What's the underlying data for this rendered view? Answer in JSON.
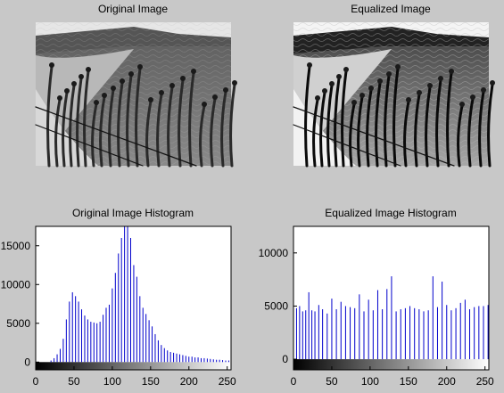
{
  "window": {
    "background": "#c8c8c8"
  },
  "images": [
    {
      "title": "Original Image",
      "kind": "original"
    },
    {
      "title": "Equalized Image",
      "kind": "equalized"
    }
  ],
  "chart_data": [
    {
      "type": "bar",
      "title": "Original Image Histogram",
      "xlabel": "",
      "ylabel": "",
      "xlim": [
        0,
        255
      ],
      "ylim": [
        -1000,
        17500
      ],
      "xticks": [
        0,
        50,
        100,
        150,
        200,
        250
      ],
      "yticks": [
        0,
        5000,
        10000,
        15000
      ],
      "grid": false,
      "bar_color": "#0000cc",
      "colorbar": "grayscale 0-255",
      "x": [
        20,
        24,
        28,
        32,
        36,
        40,
        44,
        48,
        52,
        56,
        60,
        64,
        68,
        72,
        76,
        80,
        84,
        88,
        92,
        96,
        100,
        104,
        108,
        112,
        116,
        120,
        124,
        128,
        132,
        136,
        140,
        144,
        148,
        152,
        156,
        160,
        164,
        168,
        172,
        176,
        180,
        184,
        188,
        192,
        196,
        200,
        204,
        208,
        212,
        216,
        220,
        224,
        228,
        232,
        236,
        240,
        244,
        248,
        252,
        255
      ],
      "values": [
        200,
        500,
        1000,
        1700,
        3000,
        5500,
        7800,
        9000,
        8500,
        7800,
        6800,
        6000,
        5500,
        5200,
        5100,
        5000,
        5200,
        6100,
        7000,
        7400,
        9500,
        11500,
        14000,
        16000,
        17500,
        17500,
        16000,
        12500,
        11000,
        8500,
        7000,
        6200,
        5400,
        4600,
        3600,
        2800,
        2200,
        1800,
        1500,
        1300,
        1200,
        1100,
        1000,
        900,
        800,
        700,
        700,
        600,
        600,
        500,
        500,
        450,
        400,
        350,
        300,
        300,
        250,
        200,
        200,
        800
      ]
    },
    {
      "type": "bar",
      "title": "Equalized Image Histogram",
      "xlabel": "",
      "ylabel": "",
      "xlim": [
        0,
        255
      ],
      "ylim": [
        -1000,
        12500
      ],
      "xticks": [
        0,
        50,
        100,
        150,
        200,
        250
      ],
      "yticks": [
        0,
        5000,
        10000
      ],
      "grid": false,
      "bar_color": "#0000cc",
      "colorbar": "grayscale 0-255",
      "x": [
        0,
        4,
        8,
        12,
        16,
        20,
        24,
        28,
        33,
        38,
        44,
        50,
        56,
        62,
        68,
        74,
        80,
        86,
        92,
        98,
        104,
        110,
        116,
        122,
        128,
        134,
        140,
        146,
        152,
        158,
        164,
        170,
        176,
        182,
        188,
        194,
        200,
        206,
        212,
        218,
        224,
        230,
        236,
        242,
        248,
        254
      ],
      "values": [
        4900,
        4800,
        5000,
        4500,
        4600,
        6300,
        4600,
        4500,
        5100,
        4700,
        4300,
        5700,
        4700,
        5400,
        5000,
        4900,
        4800,
        6100,
        4500,
        5600,
        4600,
        6500,
        4700,
        6600,
        7800,
        4500,
        4700,
        4800,
        5000,
        4800,
        4700,
        4500,
        4600,
        7800,
        4900,
        7300,
        5100,
        4600,
        4800,
        5300,
        5600,
        4700,
        4900,
        5000,
        5000,
        5100
      ]
    }
  ]
}
